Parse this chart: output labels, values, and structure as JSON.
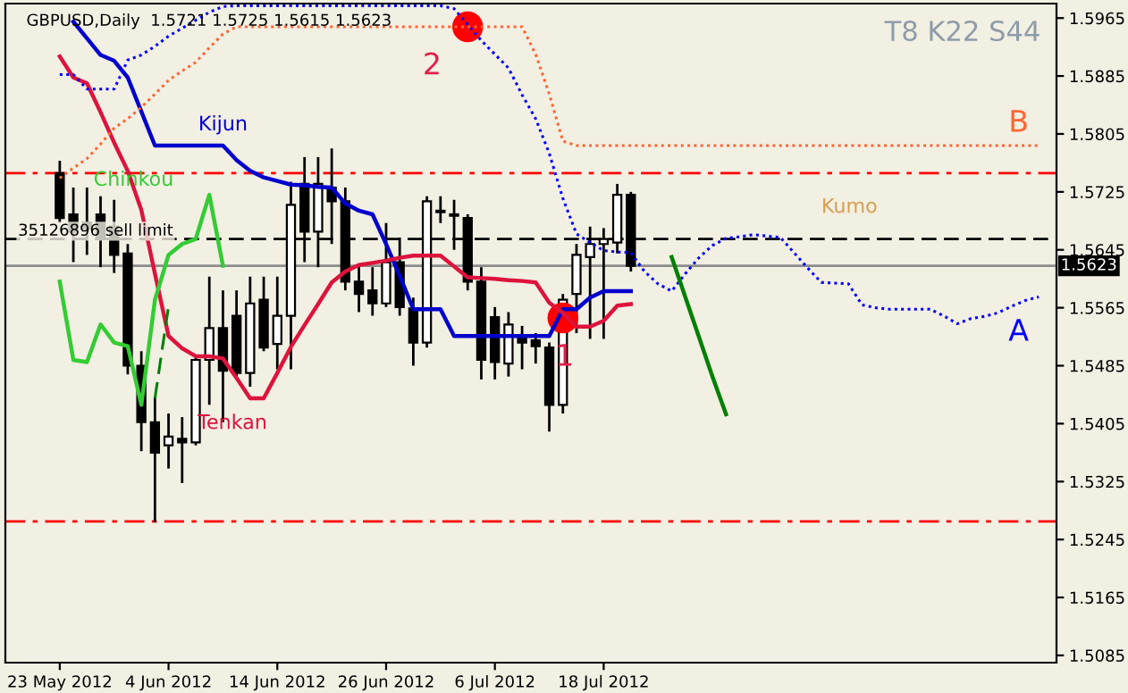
{
  "chart_data": {
    "type": "candlestick",
    "title": "GBPUSD,Daily  1.5721 1.5725 1.5615 1.5623",
    "categories": [
      "23 May 2012",
      null,
      null,
      null,
      null,
      null,
      null,
      null,
      "4 Jun 2012",
      null,
      null,
      null,
      null,
      null,
      null,
      null,
      "14 Jun 2012",
      null,
      null,
      null,
      null,
      null,
      null,
      null,
      "26 Jun 2012",
      null,
      null,
      null,
      null,
      null,
      null,
      null,
      "6 Jul 2012",
      null,
      null,
      null,
      null,
      null,
      null,
      null,
      "18 Jul 2012",
      null,
      null,
      null,
      null,
      null,
      null,
      null,
      null,
      null,
      null,
      null,
      null,
      null,
      null,
      null,
      null,
      null,
      null,
      null,
      null,
      null,
      null,
      null,
      null,
      null,
      null,
      null,
      null,
      null,
      null,
      null,
      null
    ],
    "ohlc": [
      [
        1.5751,
        1.5768,
        1.5682,
        1.5689
      ],
      [
        1.5694,
        1.5731,
        1.5628,
        1.567
      ],
      [
        1.5682,
        1.5731,
        1.5638,
        1.5675
      ],
      [
        1.5694,
        1.5719,
        1.5621,
        1.5662
      ],
      [
        1.5677,
        1.5714,
        1.5613,
        1.5638
      ],
      [
        1.564,
        1.5653,
        1.5473,
        1.5485
      ],
      [
        1.5485,
        1.5505,
        1.5367,
        1.5407
      ],
      [
        1.5407,
        1.5441,
        1.5269,
        1.5365
      ],
      [
        1.5375,
        1.5419,
        1.5343,
        1.5387
      ],
      [
        1.5384,
        1.5414,
        1.5323,
        1.5379
      ],
      [
        1.5379,
        1.5498,
        1.5375,
        1.5493
      ],
      [
        1.5493,
        1.5608,
        1.5431,
        1.5537
      ],
      [
        1.5537,
        1.5589,
        1.5407,
        1.5478
      ],
      [
        1.5554,
        1.5589,
        1.5468,
        1.5475
      ],
      [
        1.5475,
        1.5608,
        1.5456,
        1.5571
      ],
      [
        1.5576,
        1.5608,
        1.5505,
        1.551
      ],
      [
        1.5515,
        1.5608,
        1.548,
        1.5554
      ],
      [
        1.5554,
        1.5739,
        1.548,
        1.5707
      ],
      [
        1.5736,
        1.5773,
        1.5628,
        1.567
      ],
      [
        1.567,
        1.5773,
        1.5621,
        1.5736
      ],
      [
        1.5731,
        1.5785,
        1.5653,
        1.5712
      ],
      [
        1.5712,
        1.5731,
        1.5589,
        1.5601
      ],
      [
        1.5601,
        1.5625,
        1.5559,
        1.5584
      ],
      [
        1.5589,
        1.5621,
        1.5554,
        1.5571
      ],
      [
        1.5571,
        1.5682,
        1.5566,
        1.5628
      ],
      [
        1.5628,
        1.5662,
        1.5554,
        1.5566
      ],
      [
        1.5564,
        1.5579,
        1.5485,
        1.5517
      ],
      [
        1.5517,
        1.5719,
        1.551,
        1.5712
      ],
      [
        1.5699,
        1.5719,
        1.5682,
        1.5697
      ],
      [
        1.5694,
        1.5714,
        1.5645,
        1.5692
      ],
      [
        1.5689,
        1.5694,
        1.5589,
        1.5601
      ],
      [
        1.5601,
        1.5621,
        1.5466,
        1.5493
      ],
      [
        1.5552,
        1.5566,
        1.5466,
        1.549
      ],
      [
        1.5488,
        1.5559,
        1.547,
        1.5542
      ],
      [
        1.5527,
        1.554,
        1.548,
        1.5517
      ],
      [
        1.552,
        1.553,
        1.5488,
        1.5512
      ],
      [
        1.551,
        1.5517,
        1.5394,
        1.5431
      ],
      [
        1.5431,
        1.5584,
        1.5419,
        1.5576
      ],
      [
        1.5584,
        1.5653,
        1.553,
        1.5638
      ],
      [
        1.5635,
        1.5677,
        1.5522,
        1.5653
      ],
      [
        1.5653,
        1.5675,
        1.5522,
        1.566
      ],
      [
        1.5655,
        1.5736,
        1.564,
        1.5721
      ],
      [
        1.5721,
        1.5725,
        1.5615,
        1.5623
      ],
      null,
      null,
      null,
      null,
      null,
      null,
      null,
      null,
      null,
      null,
      null,
      null,
      null,
      null,
      null,
      null,
      null,
      null,
      null,
      null,
      null,
      null,
      null,
      null,
      null,
      null,
      null,
      null,
      null,
      null
    ],
    "series": [
      {
        "name": "Kijun",
        "type": "line",
        "color": "#0000cc",
        "line_style": "solid",
        "values": [
          null,
          1.596,
          1.5937,
          1.5914,
          1.5906,
          1.5883,
          1.5836,
          1.5789,
          1.5789,
          1.5789,
          1.5789,
          1.5789,
          1.5789,
          1.5769,
          1.5754,
          1.5745,
          1.574,
          1.5735,
          1.5734,
          1.5732,
          1.5731,
          1.5709,
          1.5699,
          1.5694,
          1.5653,
          1.5609,
          1.5563,
          1.5563,
          1.5563,
          1.5526,
          1.5526,
          1.5526,
          1.5526,
          1.5526,
          1.5526,
          1.5526,
          1.5526,
          1.5563,
          1.5563,
          1.5579,
          1.5588,
          1.5588,
          1.5588,
          null,
          null,
          null,
          null,
          null,
          null,
          null,
          null,
          null,
          null,
          null,
          null,
          null,
          null,
          null,
          null,
          null,
          null,
          null,
          null,
          null,
          null,
          null,
          null,
          null,
          null,
          null,
          null,
          null,
          null
        ]
      },
      {
        "name": "Tenkan",
        "type": "line",
        "color": "#dc143c",
        "line_style": "solid",
        "values": [
          1.5912,
          1.5883,
          1.5875,
          1.5835,
          1.5793,
          1.5754,
          1.57,
          1.5612,
          1.5526,
          1.5509,
          1.5498,
          1.5498,
          1.5495,
          1.5468,
          1.544,
          1.544,
          1.5475,
          1.5511,
          1.5541,
          1.557,
          1.56,
          1.5615,
          1.5624,
          1.5627,
          1.563,
          1.5634,
          1.5637,
          1.5637,
          1.5637,
          1.5622,
          1.5607,
          1.5606,
          1.5605,
          1.5603,
          1.5602,
          1.56,
          1.5572,
          1.5558,
          1.5539,
          1.5539,
          1.5547,
          1.5568,
          1.557,
          null,
          null,
          null,
          null,
          null,
          null,
          null,
          null,
          null,
          null,
          null,
          null,
          null,
          null,
          null,
          null,
          null,
          null,
          null,
          null,
          null,
          null,
          null,
          null,
          null,
          null,
          null,
          null,
          null,
          null
        ]
      },
      {
        "name": "Chinkou",
        "type": "line",
        "color": "#33cc33",
        "line_style": "solid",
        "values": [
          1.5601,
          1.5493,
          1.549,
          1.5542,
          1.5517,
          1.5512,
          1.5431,
          1.5576,
          1.5638,
          1.5653,
          1.566,
          1.5721,
          1.5623,
          null,
          null,
          null,
          null,
          null,
          null,
          null,
          null,
          null,
          null,
          null,
          null,
          null,
          null,
          null,
          null,
          null,
          null,
          null,
          null,
          null,
          null,
          null,
          null,
          null,
          null,
          null,
          null,
          null,
          null,
          null,
          null,
          null,
          null,
          null,
          null,
          null,
          null,
          null,
          null,
          null,
          null,
          null,
          null,
          null,
          null,
          null,
          null,
          null,
          null,
          null,
          null,
          null,
          null,
          null,
          null,
          null,
          null,
          null,
          null
        ]
      },
      {
        "name": "A",
        "type": "line",
        "color": "#0000ff",
        "line_style": "dotted",
        "values": [
          1.5887,
          1.5887,
          1.5867,
          1.5867,
          1.5867,
          1.5907,
          1.5914,
          1.5926,
          1.594,
          1.5951,
          1.5962,
          1.5973,
          1.5981,
          1.5982,
          1.5982,
          1.5982,
          1.5982,
          1.5982,
          1.5982,
          1.5982,
          1.5982,
          1.5982,
          1.5982,
          1.5982,
          1.5982,
          1.5982,
          1.5982,
          1.5982,
          1.5982,
          1.5978,
          1.5956,
          1.5934,
          1.5915,
          1.5896,
          1.5859,
          1.5826,
          1.5778,
          1.5716,
          1.5667,
          1.5655,
          1.5644,
          1.5642,
          1.5641,
          1.5615,
          1.5598,
          1.5588,
          1.5612,
          1.5634,
          1.5651,
          1.5661,
          1.5663,
          1.5666,
          1.5664,
          1.5662,
          1.5641,
          1.562,
          1.56,
          1.5599,
          1.5598,
          1.5569,
          1.5565,
          1.5563,
          1.5563,
          1.5563,
          1.5563,
          1.5554,
          1.5543,
          1.555,
          1.5553,
          1.5558,
          1.5567,
          1.5575,
          1.558
        ]
      },
      {
        "name": "B",
        "type": "line",
        "color": "#ff6633",
        "line_style": "dotted",
        "values": [
          1.5744,
          1.5758,
          1.5771,
          1.5791,
          1.5813,
          1.5826,
          1.5842,
          1.586,
          1.5879,
          1.5892,
          1.5904,
          1.5924,
          1.5943,
          1.5953,
          1.5953,
          1.5953,
          1.5953,
          1.5953,
          1.5953,
          1.5953,
          1.5953,
          1.5953,
          1.5953,
          1.5953,
          1.5953,
          1.5953,
          1.5953,
          1.5953,
          1.5953,
          1.5953,
          1.5953,
          1.5953,
          1.5953,
          1.5953,
          1.5953,
          1.5915,
          1.586,
          1.5795,
          1.5789,
          1.5789,
          1.5789,
          1.5789,
          1.5789,
          1.5789,
          1.5789,
          1.5789,
          1.5789,
          1.5789,
          1.5789,
          1.5789,
          1.5789,
          1.5789,
          1.5789,
          1.5789,
          1.5789,
          1.5789,
          1.5789,
          1.5789,
          1.5789,
          1.5789,
          1.5789,
          1.5789,
          1.5789,
          1.5789,
          1.5789,
          1.5789,
          1.5789,
          1.5789,
          1.5789,
          1.5789,
          1.5789,
          1.5789,
          1.5789
        ]
      },
      {
        "type": "line",
        "color": "#008000",
        "line_style": "dashed",
        "values": [
          null,
          null,
          null,
          null,
          null,
          null,
          null,
          1.544,
          1.5567,
          null,
          null,
          null,
          null,
          null,
          null,
          null,
          null,
          null,
          null,
          null,
          null,
          null,
          null,
          null,
          null,
          null,
          null,
          null,
          null,
          null,
          null,
          null,
          null,
          null,
          null,
          null,
          null,
          null,
          null,
          null,
          null,
          null,
          null,
          null,
          null,
          null,
          null,
          null,
          null,
          null,
          null,
          null,
          null,
          null,
          null,
          null,
          null,
          null,
          null,
          null,
          null,
          null,
          null,
          null,
          null,
          null,
          null,
          null,
          null,
          null,
          null,
          null,
          null
        ]
      },
      {
        "type": "line",
        "color": "#008000",
        "line_style": "solid",
        "values": [
          null,
          null,
          null,
          null,
          null,
          null,
          null,
          null,
          null,
          null,
          null,
          null,
          null,
          null,
          null,
          null,
          null,
          null,
          null,
          null,
          null,
          null,
          null,
          null,
          null,
          null,
          null,
          null,
          null,
          null,
          null,
          null,
          null,
          null,
          null,
          null,
          null,
          null,
          null,
          null,
          null,
          null,
          null,
          null,
          null,
          1.5635,
          1.558,
          1.5525,
          1.547,
          1.5418,
          null,
          null,
          null,
          null,
          null,
          null,
          null,
          null,
          null,
          null,
          null,
          null,
          null,
          null,
          null,
          null,
          null,
          null,
          null,
          null,
          null,
          null,
          null
        ]
      },
      {
        "type": "scatter",
        "color": "#ff0000",
        "marker": "circle",
        "values": [
          null,
          null,
          null,
          null,
          null,
          null,
          null,
          null,
          null,
          null,
          null,
          null,
          null,
          null,
          null,
          null,
          null,
          null,
          null,
          null,
          null,
          null,
          null,
          null,
          null,
          null,
          null,
          null,
          null,
          null,
          1.5953,
          null,
          null,
          null,
          null,
          null,
          null,
          1.5551,
          null,
          null,
          null,
          null,
          null,
          null,
          null,
          null,
          null,
          null,
          null,
          null,
          null,
          null,
          null,
          null,
          null,
          null,
          null,
          null,
          null,
          null,
          null,
          null,
          null,
          null,
          null,
          null,
          null,
          null,
          null,
          null,
          null,
          null,
          null
        ]
      }
    ],
    "ref_lines": [
      {
        "axis": "y",
        "value": 1.5751,
        "color": "#ff0000",
        "line_style": "dashdot"
      },
      {
        "axis": "y",
        "value": 1.566,
        "color": "#000000",
        "line_style": "dashed",
        "label": "35126896 sell limit"
      },
      {
        "axis": "y",
        "value": 1.5623,
        "color": "#8c8c8c",
        "line_style": "solid",
        "label": "1.5623"
      },
      {
        "axis": "y",
        "value": 1.527,
        "color": "#ff0000",
        "line_style": "dashdot"
      }
    ],
    "annotations": [
      "T8 K22 S44",
      "Kumo",
      "2",
      "1"
    ],
    "ylim": [
      1.5075,
      1.5985
    ],
    "yticks": [
      1.5965,
      1.5885,
      1.5805,
      1.5725,
      1.5645,
      1.5565,
      1.5485,
      1.5405,
      1.5325,
      1.5245,
      1.5165,
      1.5085
    ],
    "grid": false,
    "legend": false
  }
}
